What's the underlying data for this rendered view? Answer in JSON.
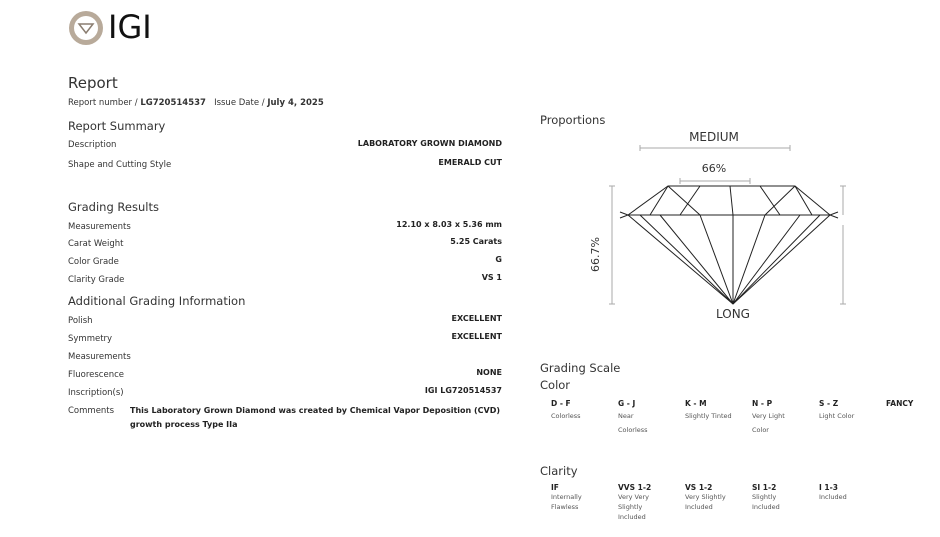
{
  "logo": {
    "text": "IGI",
    "icon": "igi-seal-icon"
  },
  "report": {
    "title": "Report",
    "number_label": "Report number /",
    "number": "LG720514537",
    "date_label": "Issue Date /",
    "date": "July 4, 2025"
  },
  "summary": {
    "title": "Report Summary",
    "rows": [
      {
        "label": "Description",
        "value": "LABORATORY GROWN DIAMOND"
      },
      {
        "label": "Shape and Cutting Style",
        "value": "EMERALD CUT"
      }
    ]
  },
  "grading": {
    "title": "Grading Results",
    "rows": [
      {
        "label": "Measurements",
        "value": "12.10 x 8.03 x 5.36 mm"
      },
      {
        "label": "Carat Weight",
        "value": "5.25 Carats"
      },
      {
        "label": "Color Grade",
        "value": "G"
      },
      {
        "label": "Clarity Grade",
        "value": "VS 1"
      }
    ]
  },
  "additional": {
    "title": "Additional Grading Information",
    "rows": [
      {
        "label": "Polish",
        "value": "EXCELLENT"
      },
      {
        "label": "Symmetry",
        "value": "EXCELLENT"
      },
      {
        "label": "Measurements",
        "value": ""
      },
      {
        "label": "Fluorescence",
        "value": "NONE"
      },
      {
        "label": "Inscription(s)",
        "value": "IGI LG720514537"
      }
    ],
    "comments_label": "Comments",
    "comments": "This Laboratory Grown Diamond was created by Chemical Vapor Deposition (CVD) growth process Type IIa"
  },
  "proportions": {
    "title": "Proportions",
    "girdle": "MEDIUM",
    "table": "66%",
    "depth": "66.7%",
    "culet": "LONG"
  },
  "scale": {
    "title": "Grading Scale",
    "color_title": "Color",
    "color": [
      {
        "grade": "D - F",
        "desc": "Colorless"
      },
      {
        "grade": "G - J",
        "desc": "Near Colorless"
      },
      {
        "grade": "K - M",
        "desc": "Slightly Tinted"
      },
      {
        "grade": "N - P",
        "desc": "Very Light Color"
      },
      {
        "grade": "S - Z",
        "desc": "Light Color"
      },
      {
        "grade": "FANCY",
        "desc": ""
      }
    ],
    "clarity_title": "Clarity",
    "clarity": [
      {
        "grade": "IF",
        "desc": "Internally Flawless"
      },
      {
        "grade": "VVS 1-2",
        "desc": "Very Very Slightly Included"
      },
      {
        "grade": "VS 1-2",
        "desc": "Very Slightly Included"
      },
      {
        "grade": "SI 1-2",
        "desc": "Slightly Included"
      },
      {
        "grade": "I 1-3",
        "desc": "Included"
      }
    ]
  }
}
